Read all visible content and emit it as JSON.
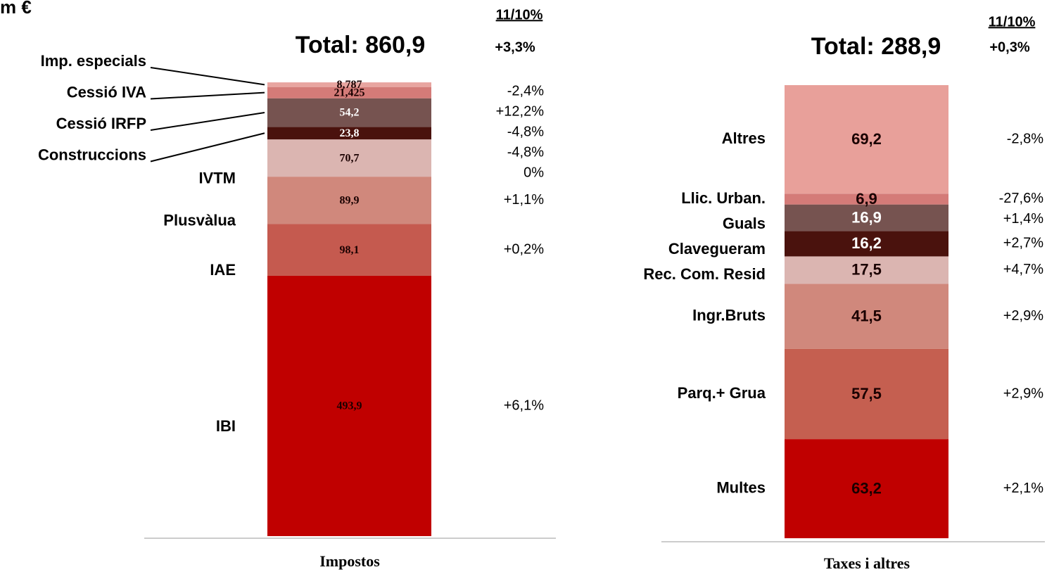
{
  "title": "m €",
  "chart_data": [
    {
      "type": "stacked_bar",
      "categories": [
        "Impostos"
      ],
      "total_prefix": "Total:",
      "total": 860.9,
      "total_label": "860,9",
      "change_header": "11/10%",
      "total_change": {
        "value": 3.3,
        "label": "+3,3%"
      },
      "series": [
        {
          "name": "IBI",
          "color": "#c00000",
          "label_color": "#1a0000",
          "values": [
            493.9
          ],
          "value_labels": [
            "493,9"
          ],
          "change": {
            "value": 6.1,
            "label": "+6,1%"
          }
        },
        {
          "name": "IAE",
          "color": "#c55a4f",
          "label_color": "#1a0000",
          "values": [
            98.1
          ],
          "value_labels": [
            "98,1"
          ],
          "change": {
            "value": 0.2,
            "label": "+0,2%"
          }
        },
        {
          "name": "Plusvàlua",
          "color": "#d0887c",
          "label_color": "#1a0000",
          "values": [
            89.9
          ],
          "value_labels": [
            "89,9"
          ],
          "change": {
            "value": 1.1,
            "label": "+1,1%"
          }
        },
        {
          "name": "IVTM",
          "color": "#dbb5b1",
          "label_color": "#1a0000",
          "values": [
            70.7
          ],
          "value_labels": [
            "70,7"
          ],
          "change": {
            "value": 0,
            "label": "0%"
          }
        },
        {
          "name": "Construccions",
          "color": "#4a120d",
          "label_color": "#ffffff",
          "values": [
            23.8
          ],
          "value_labels": [
            "23,8"
          ],
          "change": {
            "value": -4.8,
            "label": "-4,8%"
          }
        },
        {
          "name": "Cessió IRFP",
          "color": "#765350",
          "label_color": "#ffffff",
          "values": [
            54.2
          ],
          "value_labels": [
            "54,2"
          ],
          "change": {
            "value": -4.8,
            "label": "-4,8%"
          }
        },
        {
          "name": "Cessió IVA",
          "color": "#d47b78",
          "label_color": "#1a0000",
          "values": [
            21.425
          ],
          "value_labels": [
            "21,425"
          ],
          "change": {
            "value": 12.2,
            "label": "+12,2%"
          }
        },
        {
          "name": "Imp. especials",
          "color": "#e8a5a0",
          "label_color": "#1a0000",
          "values": [
            8.787
          ],
          "value_labels": [
            "8,787"
          ],
          "change": {
            "value": -2.4,
            "label": "-2,4%"
          }
        }
      ]
    },
    {
      "type": "stacked_bar",
      "categories": [
        "Taxes i altres"
      ],
      "total_prefix": "Total:",
      "total": 288.9,
      "total_label": "288,9",
      "change_header": "11/10%",
      "total_change": {
        "value": 0.3,
        "label": "+0,3%"
      },
      "series": [
        {
          "name": "Multes",
          "color": "#c00000",
          "label_color": "#1a0000",
          "values": [
            63.2
          ],
          "value_labels": [
            "63,2"
          ],
          "change": {
            "value": 2.1,
            "label": "+2,1%"
          }
        },
        {
          "name": "Parq.+ Grua",
          "color": "#c55f50",
          "label_color": "#1a0000",
          "values": [
            57.5
          ],
          "value_labels": [
            "57,5"
          ],
          "change": {
            "value": 2.9,
            "label": "+2,9%"
          }
        },
        {
          "name": "Ingr.Bruts",
          "color": "#d0887c",
          "label_color": "#1a0000",
          "values": [
            41.5
          ],
          "value_labels": [
            "41,5"
          ],
          "change": {
            "value": 2.9,
            "label": "+2,9%"
          }
        },
        {
          "name": "Rec. Com. Resid",
          "color": "#dbb5b1",
          "label_color": "#1a0000",
          "values": [
            17.5
          ],
          "value_labels": [
            "17,5"
          ],
          "change": {
            "value": 4.7,
            "label": "+4,7%"
          }
        },
        {
          "name": "Clavegueram",
          "color": "#4a120d",
          "label_color": "#ffffff",
          "values": [
            16.2
          ],
          "value_labels": [
            "16,2"
          ],
          "change": {
            "value": 2.7,
            "label": "+2,7%"
          }
        },
        {
          "name": "Guals",
          "color": "#765350",
          "label_color": "#ffffff",
          "values": [
            16.9
          ],
          "value_labels": [
            "16,9"
          ],
          "change": {
            "value": 1.4,
            "label": "+1,4%"
          }
        },
        {
          "name": "Llic. Urban.",
          "color": "#d47b78",
          "label_color": "#1a0000",
          "values": [
            6.9
          ],
          "value_labels": [
            "6,9"
          ],
          "change": {
            "value": -27.6,
            "label": "-27,6%"
          }
        },
        {
          "name": "Altres",
          "color": "#e8a09a",
          "label_color": "#1a0000",
          "values": [
            69.2
          ],
          "value_labels": [
            "69,2"
          ],
          "change": {
            "value": -2.8,
            "label": "-2,8%"
          }
        }
      ]
    }
  ]
}
